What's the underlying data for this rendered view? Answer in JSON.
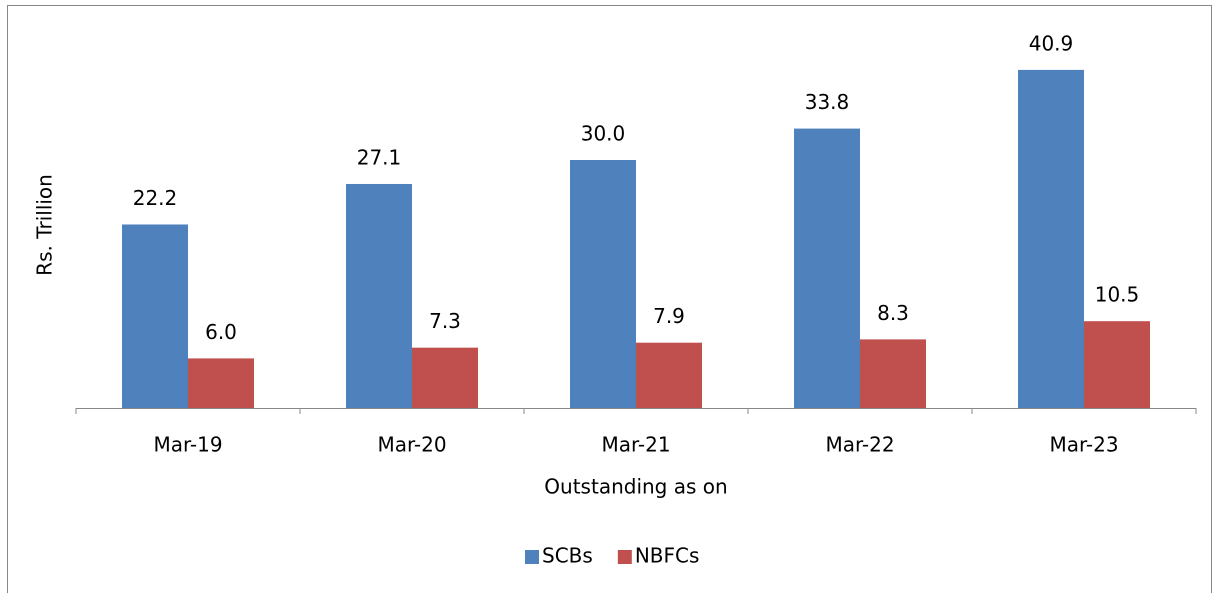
{
  "chart_data": {
    "type": "bar",
    "categories": [
      "Mar-19",
      "Mar-20",
      "Mar-21",
      "Mar-22",
      "Mar-23"
    ],
    "series": [
      {
        "name": "SCBs",
        "color": "#4f81bd",
        "values": [
          22.2,
          27.1,
          30.0,
          33.8,
          40.9
        ],
        "value_labels": [
          "22.2",
          "27.1",
          "30.0",
          "33.8",
          "40.9"
        ]
      },
      {
        "name": "NBFCs",
        "color": "#c0504d",
        "values": [
          6.0,
          7.3,
          7.9,
          8.3,
          10.5
        ],
        "value_labels": [
          "6.0",
          "7.3",
          "7.9",
          "8.3",
          "10.5"
        ]
      }
    ],
    "xlabel": "Outstanding as on",
    "ylabel": "Rs. Trillion",
    "ylim": [
      0,
      45
    ],
    "legend": "bottom"
  }
}
